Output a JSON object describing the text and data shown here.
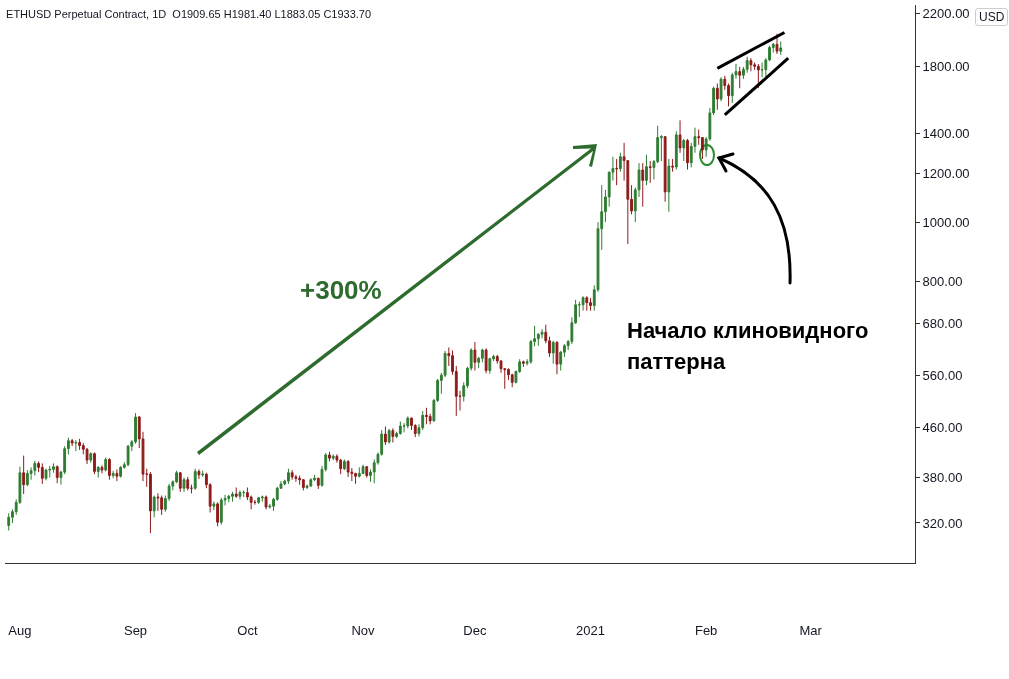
{
  "chart_data": {
    "type": "candlestick",
    "title": "ETHUSD Perpetual Contract, 1D  O1909.65 H1981.40 L1883.05 C1933.70",
    "ylabel": "USD",
    "log": true,
    "xlim": [
      "2020-07-28",
      "2021-03-29"
    ],
    "xticks": [
      {
        "value": "2020-08-01",
        "label": "Aug"
      },
      {
        "value": "2020-09-01",
        "label": "Sep"
      },
      {
        "value": "2020-10-01",
        "label": "Oct"
      },
      {
        "value": "2020-11-01",
        "label": "Nov"
      },
      {
        "value": "2020-12-01",
        "label": "Dec"
      },
      {
        "value": "2021-01-01",
        "label": "2021"
      },
      {
        "value": "2021-02-01",
        "label": "Feb"
      },
      {
        "value": "2021-03-01",
        "label": "Mar"
      }
    ],
    "ylim": [
      275,
      2275
    ],
    "yticks": [
      {
        "value": 320,
        "label": "320.00"
      },
      {
        "value": 380,
        "label": "380.00"
      },
      {
        "value": 460,
        "label": "460.00"
      },
      {
        "value": 560,
        "label": "560.00"
      },
      {
        "value": 680,
        "label": "680.00"
      },
      {
        "value": 800,
        "label": "800.00"
      },
      {
        "value": 1000,
        "label": "1000.00"
      },
      {
        "value": 1200,
        "label": "1200.00"
      },
      {
        "value": 1400,
        "label": "1400.00"
      },
      {
        "value": 1800,
        "label": "1800.00"
      },
      {
        "value": 2200,
        "label": "2200.00"
      }
    ],
    "annotations": [
      "+300%",
      "Начало клиновидного паттерна"
    ],
    "series": [
      {
        "type": "line",
        "color": "#000000",
        "x": [
          "2021-02-04",
          "2021-02-22"
        ],
        "values": [
          1790,
          2050
        ]
      },
      {
        "type": "line",
        "color": "#000000",
        "x": [
          "2021-02-06",
          "2021-02-23"
        ],
        "values": [
          1500,
          1860
        ]
      }
    ],
    "x": [
      "2020-07-29",
      "2020-07-30",
      "2020-07-31",
      "2020-08-01",
      "2020-08-02",
      "2020-08-03",
      "2020-08-04",
      "2020-08-05",
      "2020-08-06",
      "2020-08-07",
      "2020-08-08",
      "2020-08-09",
      "2020-08-10",
      "2020-08-11",
      "2020-08-12",
      "2020-08-13",
      "2020-08-14",
      "2020-08-15",
      "2020-08-16",
      "2020-08-17",
      "2020-08-18",
      "2020-08-19",
      "2020-08-20",
      "2020-08-21",
      "2020-08-22",
      "2020-08-23",
      "2020-08-24",
      "2020-08-25",
      "2020-08-26",
      "2020-08-27",
      "2020-08-28",
      "2020-08-29",
      "2020-08-30",
      "2020-08-31",
      "2020-09-01",
      "2020-09-02",
      "2020-09-03",
      "2020-09-04",
      "2020-09-05",
      "2020-09-06",
      "2020-09-07",
      "2020-09-08",
      "2020-09-09",
      "2020-09-10",
      "2020-09-11",
      "2020-09-12",
      "2020-09-13",
      "2020-09-14",
      "2020-09-15",
      "2020-09-16",
      "2020-09-17",
      "2020-09-18",
      "2020-09-19",
      "2020-09-20",
      "2020-09-21",
      "2020-09-22",
      "2020-09-23",
      "2020-09-24",
      "2020-09-25",
      "2020-09-26",
      "2020-09-27",
      "2020-09-28",
      "2020-09-29",
      "2020-09-30",
      "2020-10-01",
      "2020-10-02",
      "2020-10-03",
      "2020-10-04",
      "2020-10-05",
      "2020-10-06",
      "2020-10-07",
      "2020-10-08",
      "2020-10-09",
      "2020-10-10",
      "2020-10-11",
      "2020-10-12",
      "2020-10-13",
      "2020-10-14",
      "2020-10-15",
      "2020-10-16",
      "2020-10-17",
      "2020-10-18",
      "2020-10-19",
      "2020-10-20",
      "2020-10-21",
      "2020-10-22",
      "2020-10-23",
      "2020-10-24",
      "2020-10-25",
      "2020-10-26",
      "2020-10-27",
      "2020-10-28",
      "2020-10-29",
      "2020-10-30",
      "2020-10-31",
      "2020-11-01",
      "2020-11-02",
      "2020-11-03",
      "2020-11-04",
      "2020-11-05",
      "2020-11-06",
      "2020-11-07",
      "2020-11-08",
      "2020-11-09",
      "2020-11-10",
      "2020-11-11",
      "2020-11-12",
      "2020-11-13",
      "2020-11-14",
      "2020-11-15",
      "2020-11-16",
      "2020-11-17",
      "2020-11-18",
      "2020-11-19",
      "2020-11-20",
      "2020-11-21",
      "2020-11-22",
      "2020-11-23",
      "2020-11-24",
      "2020-11-25",
      "2020-11-26",
      "2020-11-27",
      "2020-11-28",
      "2020-11-29",
      "2020-11-30",
      "2020-12-01",
      "2020-12-02",
      "2020-12-03",
      "2020-12-04",
      "2020-12-05",
      "2020-12-06",
      "2020-12-07",
      "2020-12-08",
      "2020-12-09",
      "2020-12-10",
      "2020-12-11",
      "2020-12-12",
      "2020-12-13",
      "2020-12-14",
      "2020-12-15",
      "2020-12-16",
      "2020-12-17",
      "2020-12-18",
      "2020-12-19",
      "2020-12-20",
      "2020-12-21",
      "2020-12-22",
      "2020-12-23",
      "2020-12-24",
      "2020-12-25",
      "2020-12-26",
      "2020-12-27",
      "2020-12-28",
      "2020-12-29",
      "2020-12-30",
      "2020-12-31",
      "2021-01-01",
      "2021-01-02",
      "2021-01-03",
      "2021-01-04",
      "2021-01-05",
      "2021-01-06",
      "2021-01-07",
      "2021-01-08",
      "2021-01-09",
      "2021-01-10",
      "2021-01-11",
      "2021-01-12",
      "2021-01-13",
      "2021-01-14",
      "2021-01-15",
      "2021-01-16",
      "2021-01-17",
      "2021-01-18",
      "2021-01-19",
      "2021-01-20",
      "2021-01-21",
      "2021-01-22",
      "2021-01-23",
      "2021-01-24",
      "2021-01-25",
      "2021-01-26",
      "2021-01-27",
      "2021-01-28",
      "2021-01-29",
      "2021-01-30",
      "2021-01-31",
      "2021-02-01",
      "2021-02-02",
      "2021-02-03",
      "2021-02-04",
      "2021-02-05",
      "2021-02-06",
      "2021-02-07",
      "2021-02-08",
      "2021-02-09",
      "2021-02-10",
      "2021-02-11",
      "2021-02-12",
      "2021-02-13",
      "2021-02-14",
      "2021-02-15",
      "2021-02-16",
      "2021-02-17",
      "2021-02-18",
      "2021-02-19",
      "2021-02-20",
      "2021-02-21"
    ],
    "ohlc": [
      [
        317,
        332,
        311,
        327
      ],
      [
        327,
        337,
        320,
        334
      ],
      [
        334,
        350,
        330,
        346
      ],
      [
        346,
        396,
        344,
        387
      ],
      [
        387,
        413,
        357,
        370
      ],
      [
        370,
        391,
        368,
        386
      ],
      [
        386,
        395,
        377,
        390
      ],
      [
        390,
        405,
        383,
        401
      ],
      [
        401,
        404,
        388,
        395
      ],
      [
        395,
        401,
        371,
        379
      ],
      [
        379,
        393,
        376,
        391
      ],
      [
        391,
        397,
        380,
        392
      ],
      [
        392,
        401,
        387,
        396
      ],
      [
        396,
        398,
        372,
        380
      ],
      [
        380,
        390,
        370,
        388
      ],
      [
        388,
        428,
        385,
        424
      ],
      [
        424,
        442,
        415,
        437
      ],
      [
        437,
        440,
        428,
        433
      ],
      [
        433,
        438,
        420,
        434
      ],
      [
        434,
        440,
        422,
        429
      ],
      [
        429,
        433,
        415,
        423
      ],
      [
        423,
        425,
        400,
        406
      ],
      [
        406,
        418,
        402,
        416
      ],
      [
        416,
        418,
        385,
        389
      ],
      [
        389,
        397,
        380,
        395
      ],
      [
        395,
        398,
        386,
        391
      ],
      [
        391,
        410,
        389,
        407
      ],
      [
        407,
        409,
        377,
        383
      ],
      [
        383,
        390,
        379,
        386
      ],
      [
        386,
        392,
        375,
        382
      ],
      [
        382,
        397,
        380,
        395
      ],
      [
        395,
        403,
        393,
        399
      ],
      [
        399,
        430,
        397,
        428
      ],
      [
        428,
        438,
        420,
        435
      ],
      [
        435,
        485,
        432,
        478
      ],
      [
        478,
        480,
        425,
        440
      ],
      [
        440,
        452,
        375,
        385
      ],
      [
        385,
        393,
        367,
        385
      ],
      [
        385,
        388,
        308,
        335
      ],
      [
        335,
        355,
        327,
        353
      ],
      [
        353,
        358,
        335,
        352
      ],
      [
        352,
        355,
        330,
        337
      ],
      [
        337,
        355,
        334,
        351
      ],
      [
        351,
        371,
        348,
        368
      ],
      [
        368,
        376,
        362,
        374
      ],
      [
        374,
        390,
        372,
        387
      ],
      [
        387,
        388,
        360,
        365
      ],
      [
        365,
        380,
        360,
        377
      ],
      [
        377,
        381,
        362,
        365
      ],
      [
        365,
        370,
        358,
        365
      ],
      [
        365,
        393,
        363,
        389
      ],
      [
        389,
        392,
        378,
        384
      ],
      [
        384,
        390,
        381,
        385
      ],
      [
        385,
        387,
        365,
        370
      ],
      [
        370,
        372,
        333,
        341
      ],
      [
        341,
        347,
        336,
        344
      ],
      [
        344,
        346,
        316,
        321
      ],
      [
        321,
        352,
        318,
        349
      ],
      [
        349,
        356,
        342,
        351
      ],
      [
        351,
        356,
        346,
        354
      ],
      [
        354,
        360,
        347,
        357
      ],
      [
        357,
        366,
        352,
        354
      ],
      [
        354,
        362,
        350,
        359
      ],
      [
        359,
        362,
        353,
        359
      ],
      [
        359,
        366,
        349,
        353
      ],
      [
        353,
        355,
        337,
        346
      ],
      [
        346,
        349,
        343,
        346
      ],
      [
        346,
        353,
        344,
        352
      ],
      [
        352,
        355,
        347,
        353
      ],
      [
        353,
        355,
        337,
        340
      ],
      [
        340,
        344,
        338,
        341
      ],
      [
        341,
        352,
        335,
        350
      ],
      [
        350,
        367,
        348,
        365
      ],
      [
        365,
        375,
        364,
        371
      ],
      [
        371,
        377,
        369,
        375
      ],
      [
        375,
        393,
        371,
        387
      ],
      [
        387,
        391,
        377,
        381
      ],
      [
        381,
        384,
        374,
        379
      ],
      [
        379,
        383,
        370,
        377
      ],
      [
        377,
        378,
        362,
        366
      ],
      [
        366,
        370,
        364,
        368
      ],
      [
        368,
        379,
        367,
        377
      ],
      [
        377,
        384,
        375,
        379
      ],
      [
        379,
        380,
        364,
        369
      ],
      [
        369,
        397,
        367,
        392
      ],
      [
        392,
        417,
        389,
        414
      ],
      [
        414,
        419,
        404,
        409
      ],
      [
        409,
        415,
        406,
        412
      ],
      [
        412,
        415,
        402,
        406
      ],
      [
        406,
        408,
        385,
        393
      ],
      [
        393,
        407,
        391,
        404
      ],
      [
        404,
        406,
        381,
        388
      ],
      [
        388,
        394,
        375,
        386
      ],
      [
        386,
        387,
        371,
        382
      ],
      [
        382,
        395,
        380,
        386
      ],
      [
        386,
        399,
        385,
        396
      ],
      [
        396,
        397,
        380,
        383
      ],
      [
        383,
        392,
        374,
        388
      ],
      [
        388,
        407,
        372,
        402
      ],
      [
        402,
        418,
        399,
        415
      ],
      [
        415,
        455,
        413,
        448
      ],
      [
        448,
        461,
        430,
        435
      ],
      [
        435,
        457,
        432,
        454
      ],
      [
        454,
        458,
        434,
        444
      ],
      [
        444,
        452,
        441,
        449
      ],
      [
        449,
        470,
        447,
        462
      ],
      [
        462,
        467,
        451,
        462
      ],
      [
        462,
        479,
        458,
        476
      ],
      [
        476,
        477,
        455,
        463
      ],
      [
        463,
        465,
        443,
        449
      ],
      [
        449,
        465,
        444,
        459
      ],
      [
        459,
        489,
        455,
        481
      ],
      [
        481,
        495,
        465,
        479
      ],
      [
        479,
        484,
        465,
        471
      ],
      [
        471,
        512,
        470,
        509
      ],
      [
        509,
        552,
        506,
        549
      ],
      [
        549,
        565,
        522,
        560
      ],
      [
        560,
        614,
        556,
        608
      ],
      [
        608,
        622,
        580,
        603
      ],
      [
        603,
        615,
        561,
        568
      ],
      [
        568,
        580,
        480,
        517
      ],
      [
        517,
        528,
        490,
        517
      ],
      [
        517,
        545,
        507,
        538
      ],
      [
        538,
        578,
        533,
        575
      ],
      [
        575,
        620,
        570,
        616
      ],
      [
        616,
        635,
        570,
        588
      ],
      [
        588,
        600,
        575,
        597
      ],
      [
        597,
        619,
        588,
        616
      ],
      [
        616,
        620,
        564,
        570
      ],
      [
        570,
        598,
        563,
        596
      ],
      [
        596,
        605,
        591,
        601
      ],
      [
        601,
        605,
        585,
        591
      ],
      [
        591,
        593,
        565,
        574
      ],
      [
        574,
        575,
        532,
        572
      ],
      [
        572,
        575,
        550,
        561
      ],
      [
        561,
        563,
        535,
        545
      ],
      [
        545,
        570,
        543,
        568
      ],
      [
        568,
        595,
        565,
        589
      ],
      [
        589,
        592,
        578,
        586
      ],
      [
        586,
        595,
        581,
        589
      ],
      [
        589,
        640,
        585,
        636
      ],
      [
        636,
        675,
        625,
        643
      ],
      [
        643,
        656,
        626,
        654
      ],
      [
        654,
        666,
        644,
        659
      ],
      [
        659,
        678,
        632,
        638
      ],
      [
        638,
        648,
        600,
        609
      ],
      [
        609,
        638,
        585,
        634
      ],
      [
        634,
        637,
        562,
        584
      ],
      [
        584,
        614,
        570,
        611
      ],
      [
        611,
        630,
        600,
        626
      ],
      [
        626,
        640,
        616,
        636
      ],
      [
        636,
        697,
        630,
        683
      ],
      [
        683,
        745,
        680,
        731
      ],
      [
        731,
        740,
        698,
        731
      ],
      [
        731,
        755,
        715,
        751
      ],
      [
        751,
        755,
        715,
        737
      ],
      [
        737,
        750,
        715,
        729
      ],
      [
        729,
        787,
        715,
        774
      ],
      [
        774,
        1000,
        768,
        975
      ],
      [
        975,
        1150,
        900,
        1040
      ],
      [
        1040,
        1130,
        1000,
        1100
      ],
      [
        1100,
        1210,
        1060,
        1208
      ],
      [
        1208,
        1280,
        1170,
        1225
      ],
      [
        1225,
        1270,
        1150,
        1224
      ],
      [
        1224,
        1300,
        1210,
        1281
      ],
      [
        1281,
        1350,
        1170,
        1262
      ],
      [
        1262,
        1262,
        920,
        1090
      ],
      [
        1090,
        1150,
        1030,
        1043
      ],
      [
        1043,
        1140,
        1000,
        1130
      ],
      [
        1130,
        1250,
        1100,
        1218
      ],
      [
        1218,
        1250,
        1060,
        1171
      ],
      [
        1171,
        1290,
        1150,
        1233
      ],
      [
        1233,
        1260,
        1160,
        1230
      ],
      [
        1230,
        1265,
        1175,
        1257
      ],
      [
        1257,
        1440,
        1250,
        1377
      ],
      [
        1377,
        1390,
        1260,
        1382
      ],
      [
        1382,
        1385,
        1080,
        1121
      ],
      [
        1121,
        1270,
        1040,
        1236
      ],
      [
        1236,
        1270,
        1210,
        1232
      ],
      [
        1232,
        1410,
        1220,
        1391
      ],
      [
        1391,
        1470,
        1300,
        1324
      ],
      [
        1324,
        1370,
        1260,
        1362
      ],
      [
        1362,
        1370,
        1220,
        1252
      ],
      [
        1252,
        1350,
        1230,
        1332
      ],
      [
        1332,
        1430,
        1300,
        1382
      ],
      [
        1382,
        1420,
        1340,
        1377
      ],
      [
        1377,
        1380,
        1270,
        1314
      ],
      [
        1314,
        1380,
        1280,
        1370
      ],
      [
        1370,
        1540,
        1360,
        1512
      ],
      [
        1512,
        1670,
        1500,
        1660
      ],
      [
        1660,
        1690,
        1530,
        1594
      ],
      [
        1594,
        1730,
        1580,
        1718
      ],
      [
        1718,
        1740,
        1650,
        1677
      ],
      [
        1677,
        1690,
        1550,
        1614
      ],
      [
        1614,
        1760,
        1570,
        1746
      ],
      [
        1746,
        1820,
        1720,
        1768
      ],
      [
        1768,
        1800,
        1660,
        1744
      ],
      [
        1744,
        1800,
        1720,
        1783
      ],
      [
        1783,
        1870,
        1760,
        1843
      ],
      [
        1843,
        1860,
        1770,
        1814
      ],
      [
        1814,
        1830,
        1780,
        1804
      ],
      [
        1804,
        1820,
        1660,
        1779
      ],
      [
        1779,
        1830,
        1730,
        1781
      ],
      [
        1781,
        1860,
        1730,
        1848
      ],
      [
        1848,
        1950,
        1840,
        1937
      ],
      [
        1937,
        1970,
        1900,
        1960
      ],
      [
        1960,
        2040,
        1890,
        1910
      ],
      [
        1909.65,
        1981.4,
        1883.05,
        1933.7
      ]
    ]
  }
}
